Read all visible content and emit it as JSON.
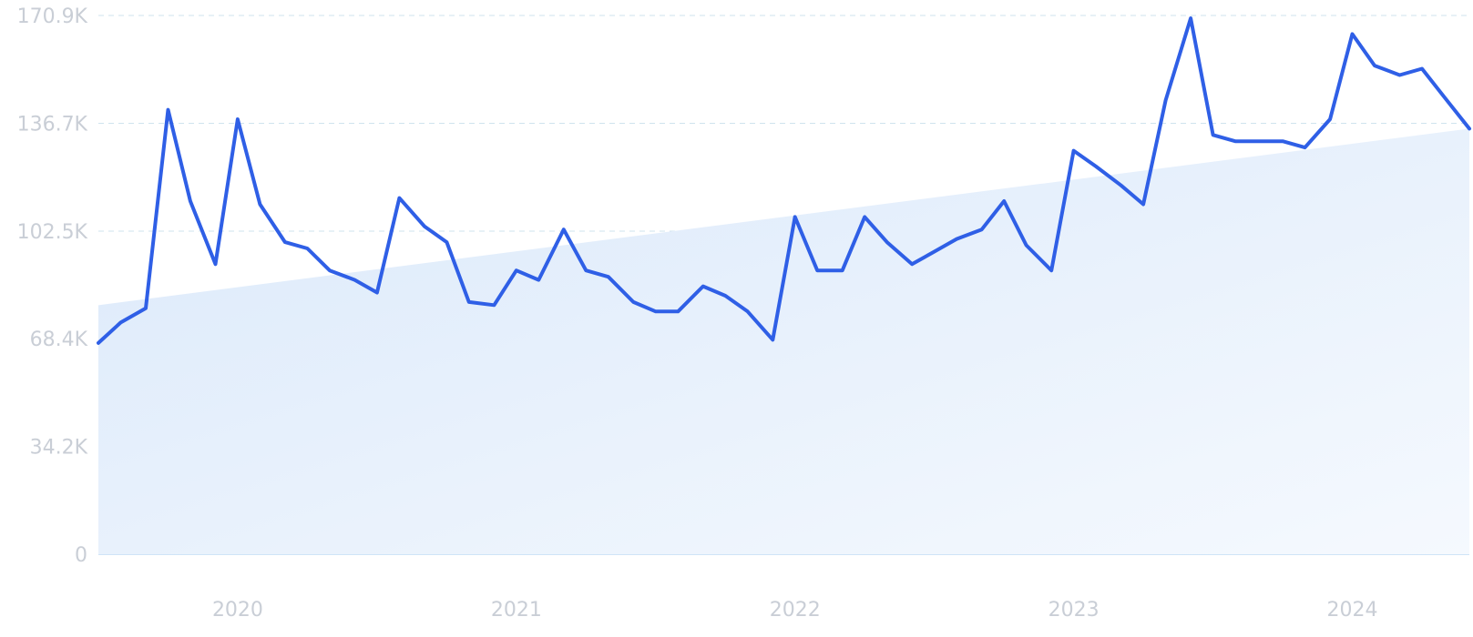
{
  "chart_data": {
    "type": "line",
    "title": "",
    "xlabel": "",
    "ylabel": "",
    "ylim": [
      0,
      170900
    ],
    "y_ticks": [
      0,
      34200,
      68400,
      102500,
      136700,
      170900
    ],
    "y_tick_labels": [
      "0",
      "34.2K",
      "68.4K",
      "102.5K",
      "136.7K",
      "170.9K"
    ],
    "x_ticks": [
      2020,
      2021,
      2022,
      2023,
      2024
    ],
    "x_tick_labels": [
      "2020",
      "2021",
      "2022",
      "2023",
      "2024"
    ],
    "x_range": [
      2019.5,
      2024.42
    ],
    "grid": true,
    "series": [
      {
        "values": [
          [
            2019.5,
            67000
          ],
          [
            2019.58,
            73500
          ],
          [
            2019.67,
            78000
          ],
          [
            2019.75,
            141000
          ],
          [
            2019.83,
            112000
          ],
          [
            2019.92,
            92000
          ],
          [
            2020.0,
            138000
          ],
          [
            2020.08,
            111000
          ],
          [
            2020.17,
            99000
          ],
          [
            2020.25,
            97000
          ],
          [
            2020.33,
            90000
          ],
          [
            2020.42,
            87000
          ],
          [
            2020.5,
            83000
          ],
          [
            2020.58,
            113000
          ],
          [
            2020.67,
            104000
          ],
          [
            2020.75,
            99000
          ],
          [
            2020.83,
            80000
          ],
          [
            2020.92,
            79000
          ],
          [
            2021.0,
            90000
          ],
          [
            2021.08,
            87000
          ],
          [
            2021.17,
            103000
          ],
          [
            2021.25,
            90000
          ],
          [
            2021.33,
            88000
          ],
          [
            2021.42,
            80000
          ],
          [
            2021.5,
            77000
          ],
          [
            2021.58,
            77000
          ],
          [
            2021.67,
            85000
          ],
          [
            2021.75,
            82000
          ],
          [
            2021.83,
            77000
          ],
          [
            2021.92,
            68000
          ],
          [
            2022.0,
            107000
          ],
          [
            2022.08,
            90000
          ],
          [
            2022.17,
            90000
          ],
          [
            2022.25,
            107000
          ],
          [
            2022.33,
            99000
          ],
          [
            2022.42,
            92000
          ],
          [
            2022.5,
            96000
          ],
          [
            2022.58,
            100000
          ],
          [
            2022.67,
            103000
          ],
          [
            2022.75,
            112000
          ],
          [
            2022.83,
            98000
          ],
          [
            2022.92,
            90000
          ],
          [
            2023.0,
            128000
          ],
          [
            2023.08,
            123000
          ],
          [
            2023.17,
            117000
          ],
          [
            2023.25,
            111000
          ],
          [
            2023.33,
            144000
          ],
          [
            2023.42,
            170000
          ],
          [
            2023.5,
            133000
          ],
          [
            2023.58,
            131000
          ],
          [
            2023.67,
            131000
          ],
          [
            2023.75,
            131000
          ],
          [
            2023.83,
            129000
          ],
          [
            2023.92,
            138000
          ],
          [
            2024.0,
            165000
          ],
          [
            2024.08,
            155000
          ],
          [
            2024.17,
            152000
          ],
          [
            2024.25,
            154000
          ],
          [
            2024.33,
            145000
          ],
          [
            2024.42,
            135000
          ]
        ]
      }
    ],
    "trend": {
      "start": [
        2019.5,
        79000
      ],
      "end": [
        2024.42,
        135000
      ]
    },
    "colors": {
      "line": "#2f5fe6",
      "area_top": "#dbe9fa",
      "area_bottom": "#f3f8fe",
      "grid": "#cfe3ee",
      "tick_text": "#c9ced6"
    }
  }
}
